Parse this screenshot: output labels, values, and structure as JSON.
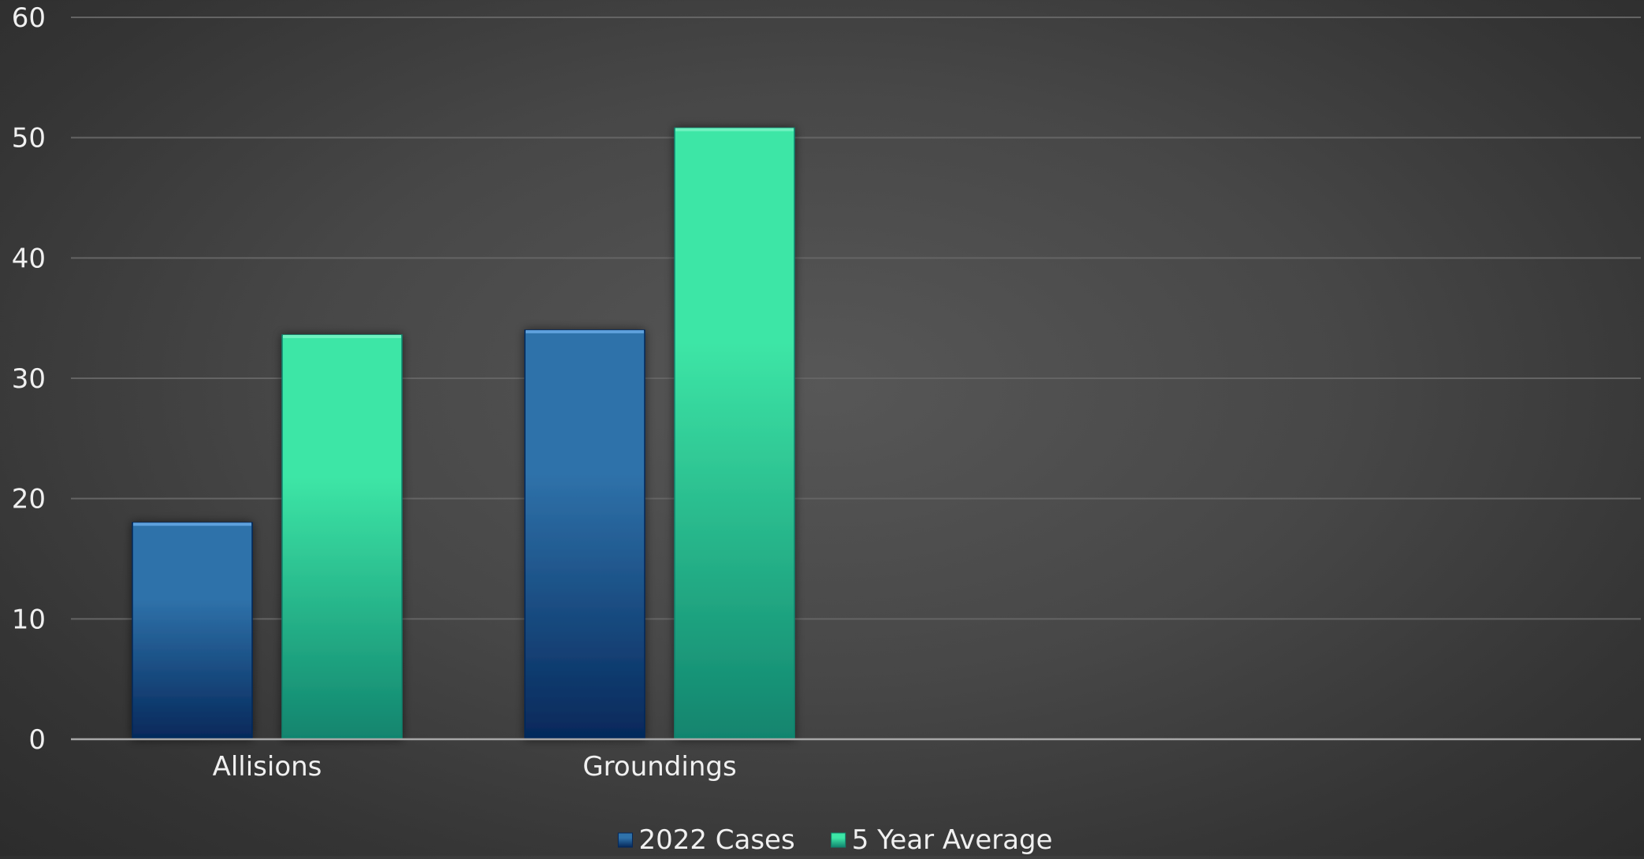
{
  "chart_data": {
    "type": "bar",
    "title": "",
    "xlabel": "",
    "ylabel": "",
    "categories": [
      "Allisions",
      "Groundings"
    ],
    "series": [
      {
        "name": "2022 Cases",
        "values": [
          18,
          34
        ],
        "color_top": "#2f72aa",
        "color_bottom": "#05285a",
        "highlight": "#5ea0dc"
      },
      {
        "name": "5 Year Average",
        "values": [
          33.6,
          50.8
        ],
        "color_top": "#3de6a6",
        "color_bottom": "#11846e",
        "highlight": "#6ff2c0"
      }
    ],
    "ylim": [
      0,
      60
    ],
    "yticks": [
      0,
      10,
      20,
      30,
      40,
      50,
      60
    ],
    "slots": 4,
    "grid": true,
    "legend_position": "bottom-center",
    "colors": {
      "grid": "#646464",
      "axis": "#a8a8a8",
      "text": "#f0f0f0"
    }
  }
}
